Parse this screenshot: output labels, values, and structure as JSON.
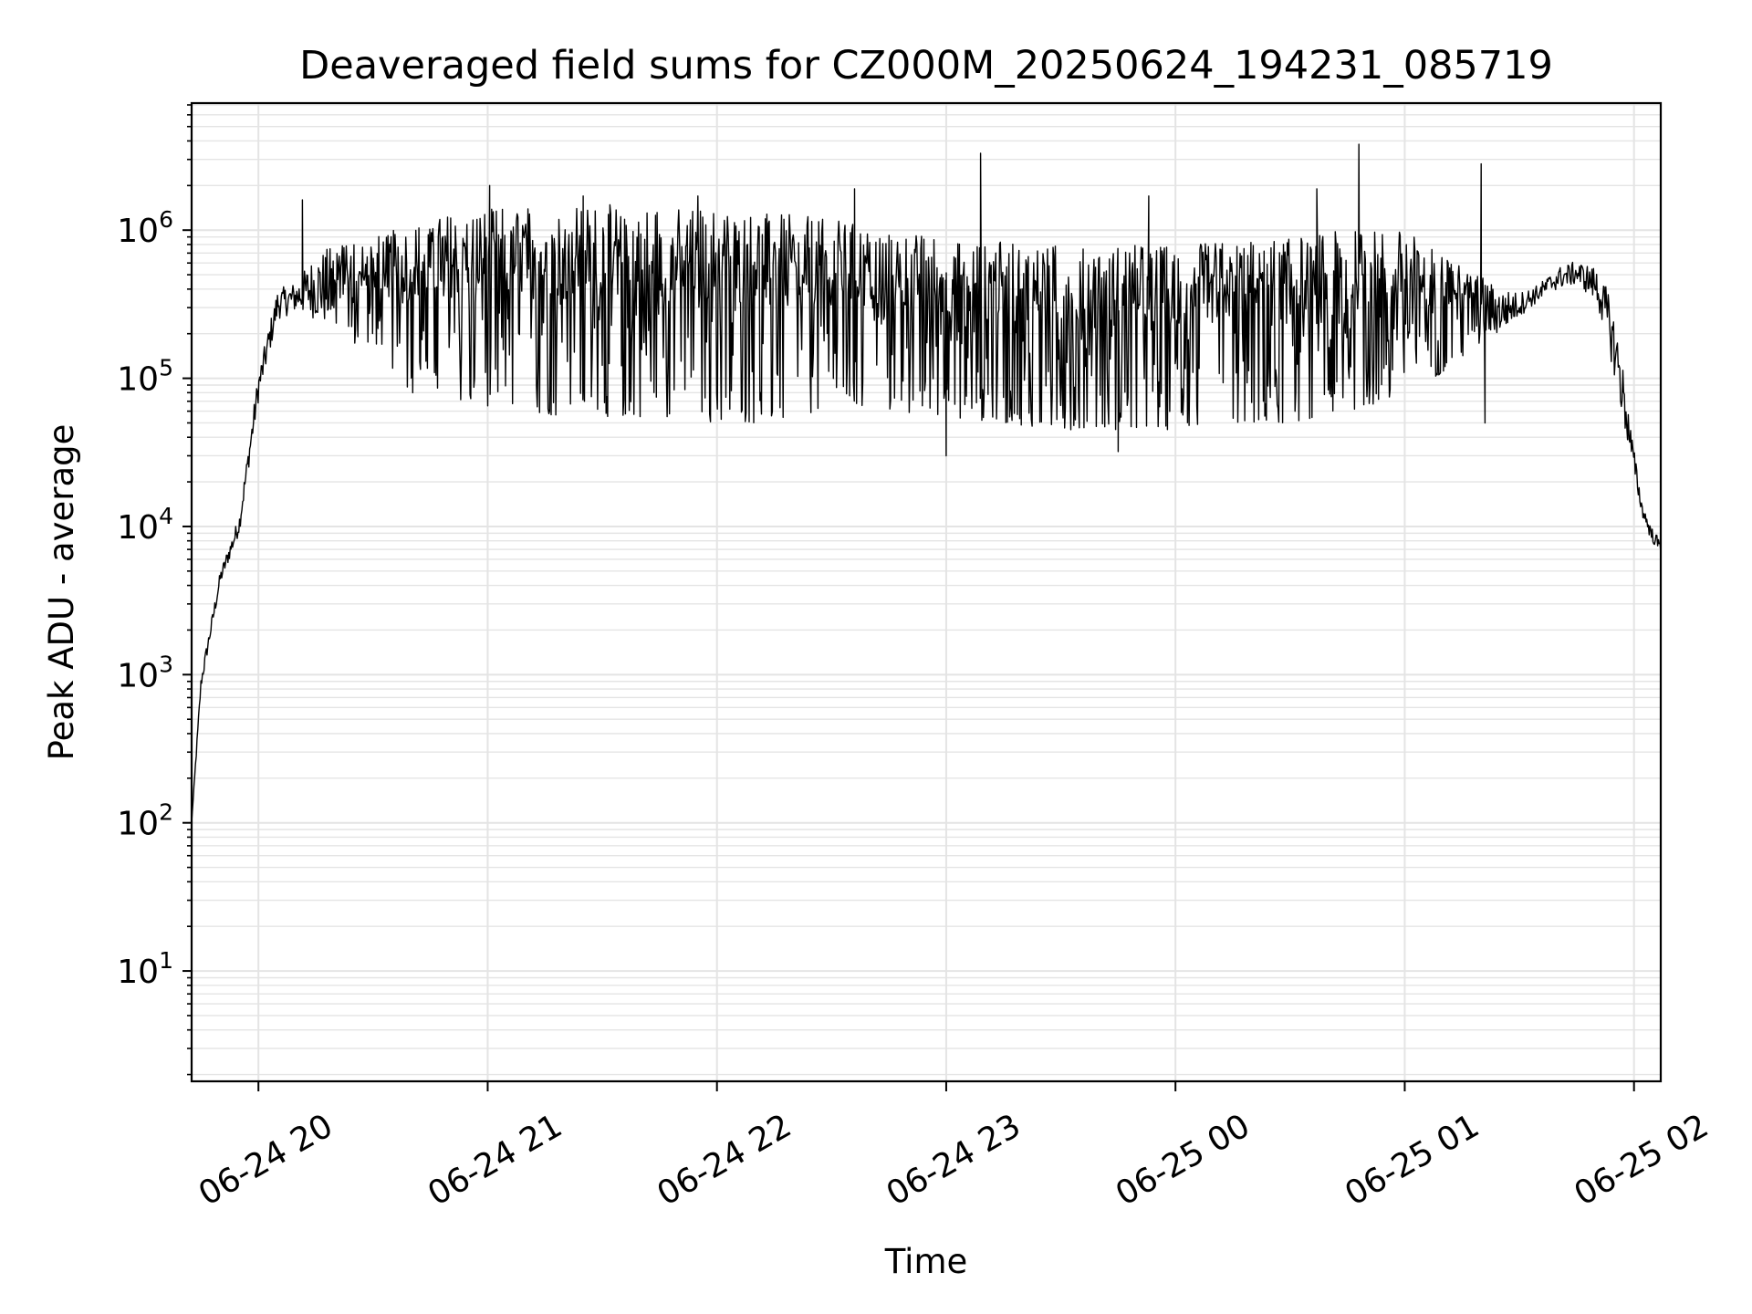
{
  "chart_data": {
    "type": "line",
    "title": "Deaveraged field sums for CZ000M_20250624_194231_085719",
    "xlabel": "Time",
    "ylabel": "Peak ADU - average",
    "y_scale": "log",
    "ylim": [
      1.8,
      7200000
    ],
    "xlim": [
      "2025-06-24T19:42:31",
      "2025-06-25T02:07:00"
    ],
    "grid": true,
    "line_color": "#000000",
    "grid_color": "#e4e4e4",
    "x_ticks": [
      {
        "value": "2025-06-24T20:00:00",
        "label": "06-24 20"
      },
      {
        "value": "2025-06-24T21:00:00",
        "label": "06-24 21"
      },
      {
        "value": "2025-06-24T22:00:00",
        "label": "06-24 22"
      },
      {
        "value": "2025-06-24T23:00:00",
        "label": "06-24 23"
      },
      {
        "value": "2025-06-25T00:00:00",
        "label": "06-25 00"
      },
      {
        "value": "2025-06-25T01:00:00",
        "label": "06-25 01"
      },
      {
        "value": "2025-06-25T02:00:00",
        "label": "06-25 02"
      }
    ],
    "y_ticks": [
      {
        "value": 10,
        "base": "10",
        "exp": "1"
      },
      {
        "value": 100,
        "base": "10",
        "exp": "2"
      },
      {
        "value": 1000,
        "base": "10",
        "exp": "3"
      },
      {
        "value": 10000,
        "base": "10",
        "exp": "4"
      },
      {
        "value": 100000,
        "base": "10",
        "exp": "5"
      },
      {
        "value": 1000000,
        "base": "10",
        "exp": "6"
      }
    ],
    "series": [
      {
        "envelope": {
          "x": [
            "2025-06-24T19:42:31",
            "2025-06-24T19:45:00",
            "2025-06-24T19:50:00",
            "2025-06-24T19:55:00",
            "2025-06-24T20:00:00",
            "2025-06-24T20:05:00",
            "2025-06-24T20:10:00",
            "2025-06-24T20:15:00",
            "2025-06-24T20:20:00",
            "2025-06-24T20:30:00",
            "2025-06-24T20:40:00",
            "2025-06-24T20:50:00",
            "2025-06-24T21:00:00",
            "2025-06-24T21:10:00",
            "2025-06-24T21:20:00",
            "2025-06-24T21:30:00",
            "2025-06-24T21:45:00",
            "2025-06-24T22:00:00",
            "2025-06-24T22:15:00",
            "2025-06-24T22:30:00",
            "2025-06-24T22:45:00",
            "2025-06-24T23:00:00",
            "2025-06-24T23:15:00",
            "2025-06-24T23:30:00",
            "2025-06-24T23:45:00",
            "2025-06-25T00:00:00",
            "2025-06-25T00:15:00",
            "2025-06-25T00:30:00",
            "2025-06-25T00:45:00",
            "2025-06-25T01:00:00",
            "2025-06-25T01:10:00",
            "2025-06-25T01:20:00",
            "2025-06-25T01:25:00",
            "2025-06-25T01:30:00",
            "2025-06-25T01:35:00",
            "2025-06-25T01:40:00",
            "2025-06-25T01:45:00",
            "2025-06-25T01:50:00",
            "2025-06-25T01:53:00",
            "2025-06-25T01:56:00",
            "2025-06-25T01:59:00",
            "2025-06-25T02:02:00",
            "2025-06-25T02:04:30",
            "2025-06-25T02:07:00"
          ],
          "low": [
            100,
            800,
            4000,
            9000,
            70000,
            250000,
            280000,
            250000,
            200000,
            150000,
            80000,
            70000,
            65000,
            60000,
            55000,
            55000,
            55000,
            50000,
            50000,
            60000,
            60000,
            55000,
            50000,
            45000,
            45000,
            45000,
            50000,
            50000,
            60000,
            75000,
            110000,
            170000,
            200000,
            260000,
            330000,
            400000,
            430000,
            330000,
            180000,
            70000,
            30000,
            12000,
            8000,
            6500
          ],
          "high": [
            100,
            1000,
            5000,
            12000,
            110000,
            400000,
            450000,
            700000,
            800000,
            900000,
            1100000,
            1300000,
            1400000,
            1450000,
            1500000,
            1500000,
            1450000,
            1400000,
            1300000,
            1200000,
            1000000,
            900000,
            850000,
            800000,
            800000,
            800000,
            850000,
            900000,
            1000000,
            1000000,
            700000,
            500000,
            400000,
            380000,
            430000,
            560000,
            620000,
            560000,
            400000,
            200000,
            50000,
            15000,
            10000,
            8000
          ]
        },
        "spikes": [
          {
            "x": "2025-06-24T20:11:30",
            "y": 1600000
          },
          {
            "x": "2025-06-24T21:00:30",
            "y": 2000000
          },
          {
            "x": "2025-06-24T21:25:00",
            "y": 1700000
          },
          {
            "x": "2025-06-24T21:55:00",
            "y": 1700000
          },
          {
            "x": "2025-06-24T22:36:00",
            "y": 1900000
          },
          {
            "x": "2025-06-24T23:09:00",
            "y": 3300000
          },
          {
            "x": "2025-06-24T23:53:00",
            "y": 1700000
          },
          {
            "x": "2025-06-25T00:37:00",
            "y": 1900000
          },
          {
            "x": "2025-06-25T00:48:00",
            "y": 3800000
          },
          {
            "x": "2025-06-25T01:20:00",
            "y": 2800000
          },
          {
            "x": "2025-06-24T23:00:00",
            "y": 30000
          },
          {
            "x": "2025-06-24T23:45:00",
            "y": 32000
          },
          {
            "x": "2025-06-25T01:21:00",
            "y": 50000
          }
        ]
      }
    ]
  }
}
